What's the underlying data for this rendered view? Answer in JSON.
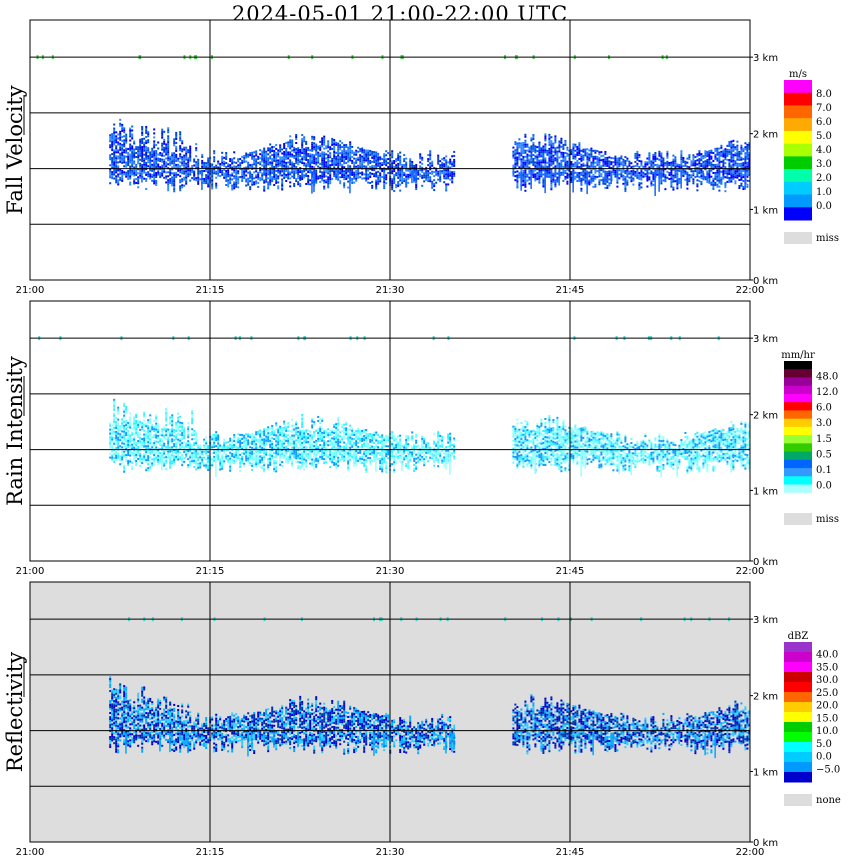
{
  "title": "2024-05-01   21:00-22:00 UTC",
  "chart_data": [
    {
      "type": "heatmap",
      "ylabel": "Fall Velocity",
      "x_ticks": [
        "21:00",
        "21:15",
        "21:30",
        "21:45",
        "22:00"
      ],
      "y_ticks": [
        "0 km",
        "1 km",
        "2 km",
        "3 km"
      ],
      "ylim": [
        0,
        3.5
      ],
      "background": "#ffffff",
      "legend": {
        "unit": "m/s",
        "colors": [
          "#ff00ff",
          "#ff0000",
          "#ff6600",
          "#ffaa00",
          "#ffff00",
          "#aaff00",
          "#00cc00",
          "#00ffaa",
          "#00ccff",
          "#0099ff",
          "#0000ff"
        ],
        "labels": [
          "8.0",
          "7.0",
          "6.0",
          "5.0",
          "4.0",
          "3.0",
          "2.0",
          "1.0",
          "0.0"
        ],
        "miss_label": "miss",
        "miss_color": "#dddddd"
      },
      "layer": {
        "base_km": 1.5,
        "top_km_peak": 2.2,
        "colors": [
          "#0000ff",
          "#1166ff",
          "#0044cc",
          "#3388ff"
        ]
      }
    },
    {
      "type": "heatmap",
      "ylabel": "Rain Intensity",
      "x_ticks": [
        "21:00",
        "21:15",
        "21:30",
        "21:45",
        "22:00"
      ],
      "y_ticks": [
        "0 km",
        "1 km",
        "2 km",
        "3 km"
      ],
      "ylim": [
        0,
        3.5
      ],
      "background": "#ffffff",
      "legend": {
        "unit": "mm/hr",
        "colors": [
          "#000000",
          "#660033",
          "#990099",
          "#cc00cc",
          "#ff00ff",
          "#ff0000",
          "#ff6600",
          "#ffcc00",
          "#ffff00",
          "#99ff33",
          "#33cc00",
          "#00aa66",
          "#0066ff",
          "#3399ff",
          "#00ffff",
          "#aaffff",
          "#ffffff"
        ],
        "labels": [
          "48.0",
          "12.0",
          "6.0",
          "3.0",
          "1.5",
          "0.5",
          "0.1",
          "0.0"
        ],
        "miss_label": "miss",
        "miss_color": "#dddddd"
      },
      "layer": {
        "base_km": 1.5,
        "top_km_peak": 2.2,
        "colors": [
          "#66ffff",
          "#99ffff",
          "#33eeff",
          "#1199ff"
        ]
      }
    },
    {
      "type": "heatmap",
      "ylabel": "Reflectivity",
      "x_ticks": [
        "21:00",
        "21:15",
        "21:30",
        "21:45",
        "22:00"
      ],
      "y_ticks": [
        "0 km",
        "1 km",
        "2 km",
        "3 km"
      ],
      "ylim": [
        0,
        3.5
      ],
      "background": "#dddddd",
      "legend": {
        "unit": "dBZ",
        "colors": [
          "#9933cc",
          "#cc00cc",
          "#ff00ff",
          "#cc0000",
          "#ff0000",
          "#ff6600",
          "#ffcc00",
          "#ffff00",
          "#00cc00",
          "#00ff00",
          "#00ffff",
          "#00ccff",
          "#0099ff",
          "#0000cc"
        ],
        "labels": [
          "40.0",
          "35.0",
          "30.0",
          "25.0",
          "20.0",
          "15.0",
          "10.0",
          "5.0",
          "0.0",
          "−5.0"
        ],
        "miss_label": "none",
        "miss_color": "#dddddd"
      },
      "layer": {
        "base_km": 1.5,
        "top_km_peak": 2.2,
        "colors": [
          "#0000cc",
          "#00aaff",
          "#33ccff",
          "#0033aa"
        ]
      }
    }
  ]
}
